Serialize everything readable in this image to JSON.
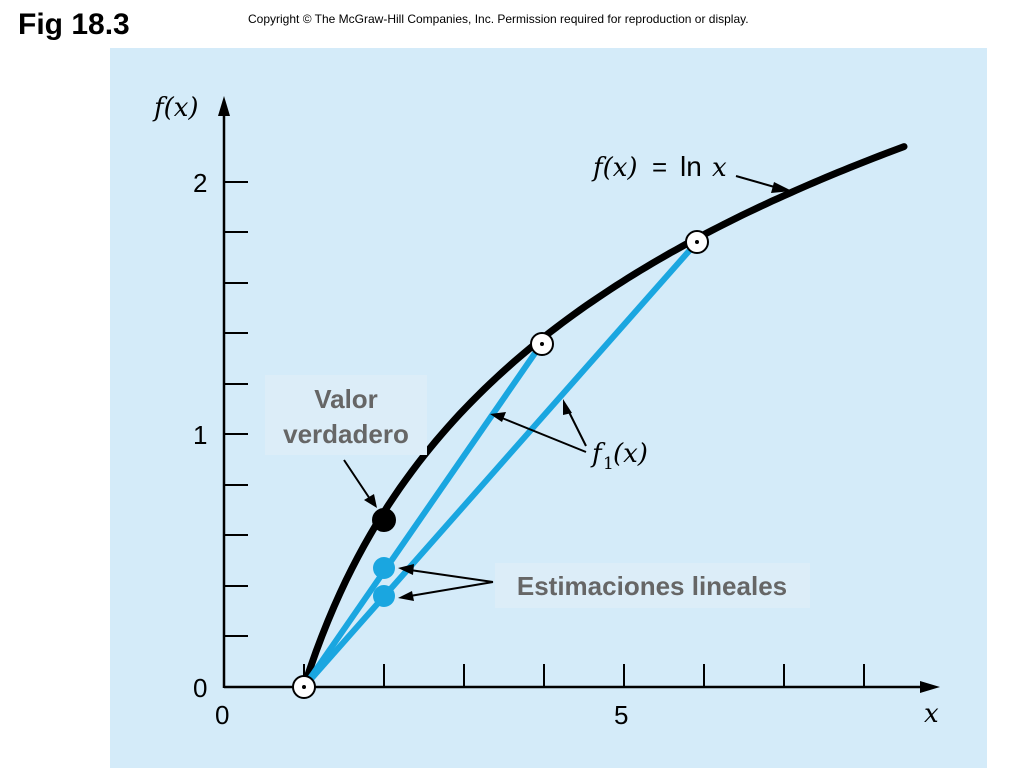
{
  "header": {
    "fig_label": "Fig 18.3",
    "copyright": "Copyright © The McGraw-Hill Companies, Inc. Permission required for reproduction or display."
  },
  "diagram": {
    "y_axis_label": "f(x)",
    "x_axis_label": "x",
    "y_ticks": [
      "0",
      "1",
      "2"
    ],
    "x_ticks": [
      "0",
      "5"
    ],
    "curve_label": "f(x) = ln x",
    "linear_label": "f1(x)",
    "true_value_label": [
      "Valor",
      "verdadero"
    ],
    "estimates_label": "Estimaciones lineales",
    "colors": {
      "background": "#d4ebf9",
      "curve": "#000000",
      "linear": "#1aa6e0",
      "box": "#dcedf8"
    }
  }
}
